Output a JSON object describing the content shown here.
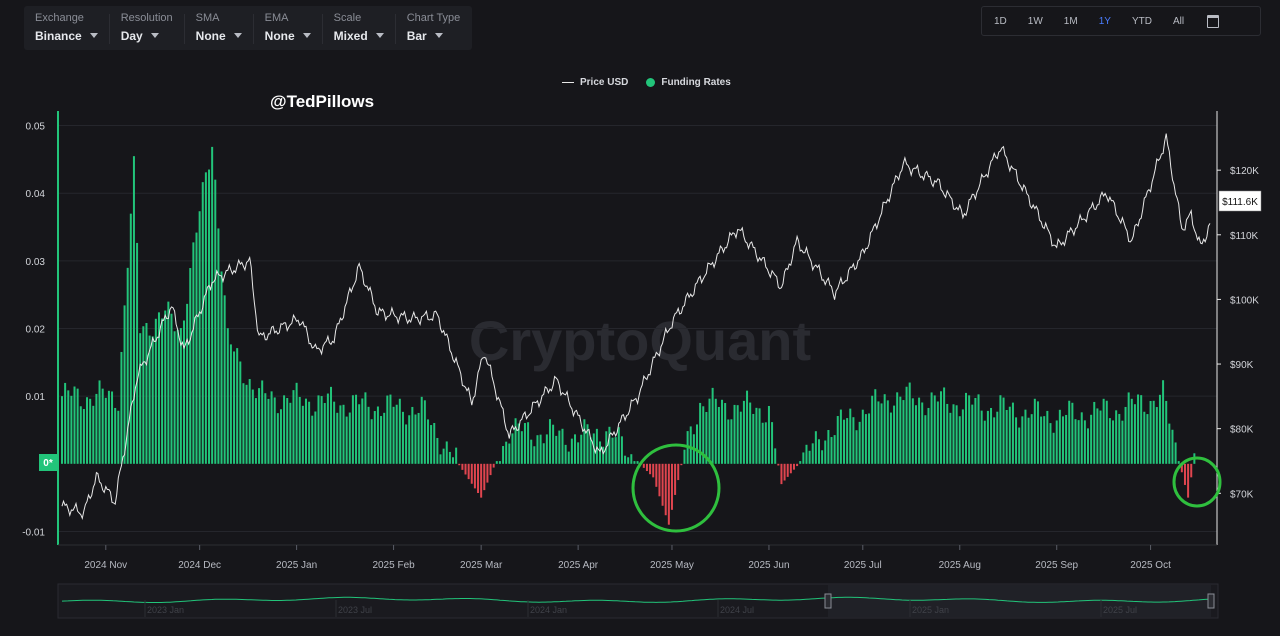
{
  "toolbar": {
    "items": [
      {
        "label": "Exchange",
        "value": "Binance"
      },
      {
        "label": "Resolution",
        "value": "Day"
      },
      {
        "label": "SMA",
        "value": "None"
      },
      {
        "label": "EMA",
        "value": "None"
      },
      {
        "label": "Scale",
        "value": "Mixed"
      },
      {
        "label": "Chart Type",
        "value": "Bar"
      }
    ]
  },
  "ranges": {
    "items": [
      "1D",
      "1W",
      "1M",
      "1Y",
      "YTD",
      "All"
    ],
    "active": "1Y"
  },
  "legend": {
    "price": "Price USD",
    "funding": "Funding Rates"
  },
  "annotation": "@TedPillows",
  "watermark": "CryptoQuant",
  "colors": {
    "positive": "#22c47a",
    "negative": "#e0454f",
    "price": "#e8e8e8",
    "highlight_circle": "#2fbf3e"
  },
  "chart_data": {
    "type": "bar",
    "x_range": [
      "2024-10-18",
      "2025-10-20"
    ],
    "y_left": {
      "ticks": [
        "0.05",
        "0.04",
        "0.03",
        "0.02",
        "0.01",
        "0",
        "-0.01"
      ],
      "zero_marker": "0*",
      "range": [
        -0.012,
        0.052
      ]
    },
    "y_right": {
      "ticks": [
        "$120K",
        "$110K",
        "$100K",
        "$90K",
        "$80K",
        "$70K"
      ],
      "range": [
        62000,
        129000
      ],
      "current_label": "$111.6K",
      "current_value": 111600
    },
    "x_ticks": [
      "2024 Nov",
      "2024 Dec",
      "2025 Jan",
      "2025 Feb",
      "2025 Mar",
      "2025 Apr",
      "2025 May",
      "2025 Jun",
      "2025 Jul",
      "2025 Aug",
      "2025 Sep",
      "2025 Oct"
    ],
    "funding_rate_keypoints": [
      {
        "date": "2024-10-18",
        "value": 0.01
      },
      {
        "date": "2024-11-05",
        "value": 0.01
      },
      {
        "date": "2024-11-10",
        "value": 0.043
      },
      {
        "date": "2024-11-12",
        "value": 0.02
      },
      {
        "date": "2024-11-20",
        "value": 0.022
      },
      {
        "date": "2024-11-25",
        "value": 0.02
      },
      {
        "date": "2024-12-05",
        "value": 0.048
      },
      {
        "date": "2024-12-10",
        "value": 0.018
      },
      {
        "date": "2024-12-20",
        "value": 0.01
      },
      {
        "date": "2025-01-15",
        "value": 0.009
      },
      {
        "date": "2025-02-10",
        "value": 0.008
      },
      {
        "date": "2025-03-01",
        "value": -0.005
      },
      {
        "date": "2025-03-10",
        "value": 0.005
      },
      {
        "date": "2025-04-01",
        "value": 0.004
      },
      {
        "date": "2025-04-10",
        "value": 0.005
      },
      {
        "date": "2025-04-25",
        "value": -0.002
      },
      {
        "date": "2025-04-30",
        "value": -0.009
      },
      {
        "date": "2025-05-05",
        "value": 0.002
      },
      {
        "date": "2025-05-10",
        "value": 0.009
      },
      {
        "date": "2025-06-01",
        "value": 0.008
      },
      {
        "date": "2025-06-05",
        "value": -0.003
      },
      {
        "date": "2025-06-20",
        "value": 0.005
      },
      {
        "date": "2025-07-10",
        "value": 0.01
      },
      {
        "date": "2025-08-01",
        "value": 0.009
      },
      {
        "date": "2025-09-01",
        "value": 0.007
      },
      {
        "date": "2025-09-20",
        "value": 0.008
      },
      {
        "date": "2025-10-05",
        "value": 0.01
      },
      {
        "date": "2025-10-13",
        "value": -0.005
      },
      {
        "date": "2025-10-15",
        "value": 0.001
      }
    ],
    "price_keypoints": [
      {
        "date": "2024-10-18",
        "value": 68000
      },
      {
        "date": "2024-10-25",
        "value": 67000
      },
      {
        "date": "2024-10-29",
        "value": 72500
      },
      {
        "date": "2024-11-04",
        "value": 68700
      },
      {
        "date": "2024-11-11",
        "value": 88000
      },
      {
        "date": "2024-11-22",
        "value": 99000
      },
      {
        "date": "2024-11-26",
        "value": 92000
      },
      {
        "date": "2024-12-05",
        "value": 103000
      },
      {
        "date": "2024-12-17",
        "value": 106000
      },
      {
        "date": "2024-12-20",
        "value": 94000
      },
      {
        "date": "2025-01-02",
        "value": 97000
      },
      {
        "date": "2025-01-07",
        "value": 92000
      },
      {
        "date": "2025-01-13",
        "value": 94000
      },
      {
        "date": "2025-01-21",
        "value": 105000
      },
      {
        "date": "2025-01-27",
        "value": 98000
      },
      {
        "date": "2025-02-07",
        "value": 97000
      },
      {
        "date": "2025-02-15",
        "value": 97500
      },
      {
        "date": "2025-02-26",
        "value": 84000
      },
      {
        "date": "2025-03-02",
        "value": 92000
      },
      {
        "date": "2025-03-10",
        "value": 79000
      },
      {
        "date": "2025-03-25",
        "value": 87500
      },
      {
        "date": "2025-04-08",
        "value": 76000
      },
      {
        "date": "2025-04-20",
        "value": 85000
      },
      {
        "date": "2025-05-01",
        "value": 96500
      },
      {
        "date": "2025-05-10",
        "value": 103000
      },
      {
        "date": "2025-05-22",
        "value": 111000
      },
      {
        "date": "2025-06-05",
        "value": 102000
      },
      {
        "date": "2025-06-10",
        "value": 109000
      },
      {
        "date": "2025-06-22",
        "value": 101000
      },
      {
        "date": "2025-07-01",
        "value": 107000
      },
      {
        "date": "2025-07-14",
        "value": 121000
      },
      {
        "date": "2025-07-25",
        "value": 118000
      },
      {
        "date": "2025-08-02",
        "value": 113000
      },
      {
        "date": "2025-08-14",
        "value": 123500
      },
      {
        "date": "2025-09-01",
        "value": 108000
      },
      {
        "date": "2025-09-17",
        "value": 116500
      },
      {
        "date": "2025-09-25",
        "value": 109000
      },
      {
        "date": "2025-10-06",
        "value": 125000
      },
      {
        "date": "2025-10-11",
        "value": 111000
      },
      {
        "date": "2025-10-14",
        "value": 113000
      },
      {
        "date": "2025-10-17",
        "value": 108000
      },
      {
        "date": "2025-10-20",
        "value": 111600
      }
    ]
  },
  "navigator": {
    "ticks": [
      "2023 Jan",
      "2023 Jul",
      "2024 Jan",
      "2024 Jul",
      "2025 Jan",
      "2025 Jul"
    ]
  }
}
